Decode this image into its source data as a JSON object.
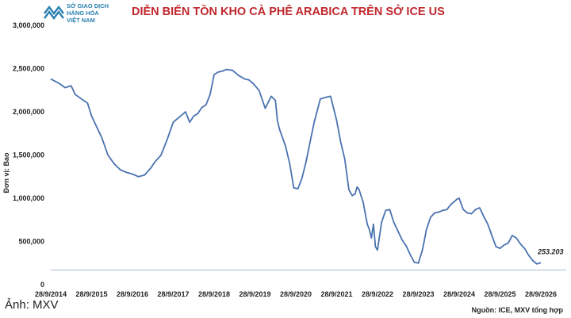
{
  "header": {
    "logo_lines": [
      "SỞ GIAO DỊCH",
      "HÀNG HÓA",
      "VIỆT NAM"
    ],
    "logo_color": "#2a7fb0"
  },
  "footer": {
    "caption": "Ảnh: MXV",
    "source": "Nguồn: ICE, MXV tổng hợp"
  },
  "chart_data": {
    "type": "line",
    "title": "DIỄN BIẾN TỒN KHO CÀ PHÊ ARABICA TRÊN SỞ ICE US",
    "title_color": "#c0282e",
    "ylabel": "Đơn vị: Bao",
    "xlabel": "",
    "ylim": [
      0,
      3000000
    ],
    "xlim": [
      2014.0,
      2026.0
    ],
    "y_ticks": [
      0,
      500000,
      1000000,
      1500000,
      2000000,
      2500000,
      3000000
    ],
    "y_tick_labels": [
      "0",
      "500,000",
      "1,000,000",
      "1,500,000",
      "2,000,000",
      "2,500,000",
      "3,000,000"
    ],
    "x_ticks": [
      2014,
      2015,
      2016,
      2017,
      2018,
      2019,
      2020,
      2021,
      2022,
      2023,
      2024,
      2025,
      2026
    ],
    "x_tick_labels": [
      "28/9/2014",
      "28/9/2015",
      "28/9/2016",
      "28/9/2017",
      "28/9/2018",
      "28/9/2019",
      "28/9/2020",
      "28/9/2021",
      "28/9/2022",
      "28/9/2023",
      "28/9/2024",
      "28/9/2025",
      "28/9/2026"
    ],
    "grid": false,
    "line_color": "#4a72b0",
    "end_label": "253.203",
    "series": [
      {
        "x": [
          2014.0,
          2014.2,
          2014.35,
          2014.5,
          2014.6,
          2014.75,
          2014.9,
          2015.0,
          2015.1,
          2015.25,
          2015.4,
          2015.55,
          2015.7,
          2015.85,
          2016.0,
          2016.15,
          2016.3,
          2016.45,
          2016.55,
          2016.7,
          2016.85,
          2017.0,
          2017.1,
          2017.2,
          2017.3,
          2017.4,
          2017.5,
          2017.6,
          2017.7,
          2017.8,
          2017.9,
          2018.0,
          2018.1,
          2018.2,
          2018.3,
          2018.45,
          2018.6,
          2018.75,
          2018.85,
          2018.95,
          2019.1,
          2019.25,
          2019.4,
          2019.5,
          2019.55,
          2019.6,
          2019.75,
          2019.85,
          2019.95,
          2020.05,
          2020.15,
          2020.25,
          2020.35,
          2020.45,
          2020.6,
          2020.75,
          2020.85,
          2021.0,
          2021.1,
          2021.2,
          2021.3,
          2021.38,
          2021.45,
          2021.5,
          2021.55,
          2021.65,
          2021.75,
          2021.8,
          2021.85,
          2021.9,
          2021.95,
          2022.0,
          2022.1,
          2022.2,
          2022.3,
          2022.4,
          2022.5,
          2022.6,
          2022.7,
          2022.8,
          2022.9,
          2023.0,
          2023.1,
          2023.2,
          2023.3,
          2023.4,
          2023.5,
          2023.6,
          2023.7,
          2023.8,
          2023.95,
          2024.0,
          2024.1,
          2024.2,
          2024.3,
          2024.4,
          2024.5,
          2024.6,
          2024.7,
          2024.8,
          2024.9,
          2025.0,
          2025.1,
          2025.2,
          2025.3,
          2025.4,
          2025.5,
          2025.6,
          2025.7,
          2025.8,
          2025.9,
          2026.0
        ],
        "y": [
          2380000,
          2330000,
          2280000,
          2300000,
          2200000,
          2150000,
          2100000,
          1950000,
          1850000,
          1700000,
          1500000,
          1400000,
          1330000,
          1300000,
          1280000,
          1250000,
          1270000,
          1350000,
          1420000,
          1500000,
          1680000,
          1880000,
          1920000,
          1960000,
          2000000,
          1880000,
          1950000,
          1980000,
          2050000,
          2080000,
          2200000,
          2430000,
          2460000,
          2470000,
          2490000,
          2480000,
          2420000,
          2380000,
          2370000,
          2330000,
          2250000,
          2040000,
          2180000,
          2130000,
          1900000,
          1800000,
          1600000,
          1400000,
          1120000,
          1110000,
          1230000,
          1420000,
          1650000,
          1880000,
          2150000,
          2170000,
          2180000,
          1900000,
          1650000,
          1450000,
          1100000,
          1030000,
          1050000,
          1130000,
          1100000,
          950000,
          700000,
          640000,
          540000,
          700000,
          440000,
          400000,
          720000,
          860000,
          870000,
          720000,
          620000,
          520000,
          450000,
          350000,
          260000,
          250000,
          400000,
          640000,
          780000,
          830000,
          840000,
          860000,
          870000,
          930000,
          990000,
          1000000,
          870000,
          830000,
          820000,
          870000,
          890000,
          790000,
          700000,
          570000,
          440000,
          420000,
          460000,
          480000,
          570000,
          540000,
          470000,
          420000,
          340000,
          280000,
          240000,
          253203
        ]
      }
    ]
  }
}
